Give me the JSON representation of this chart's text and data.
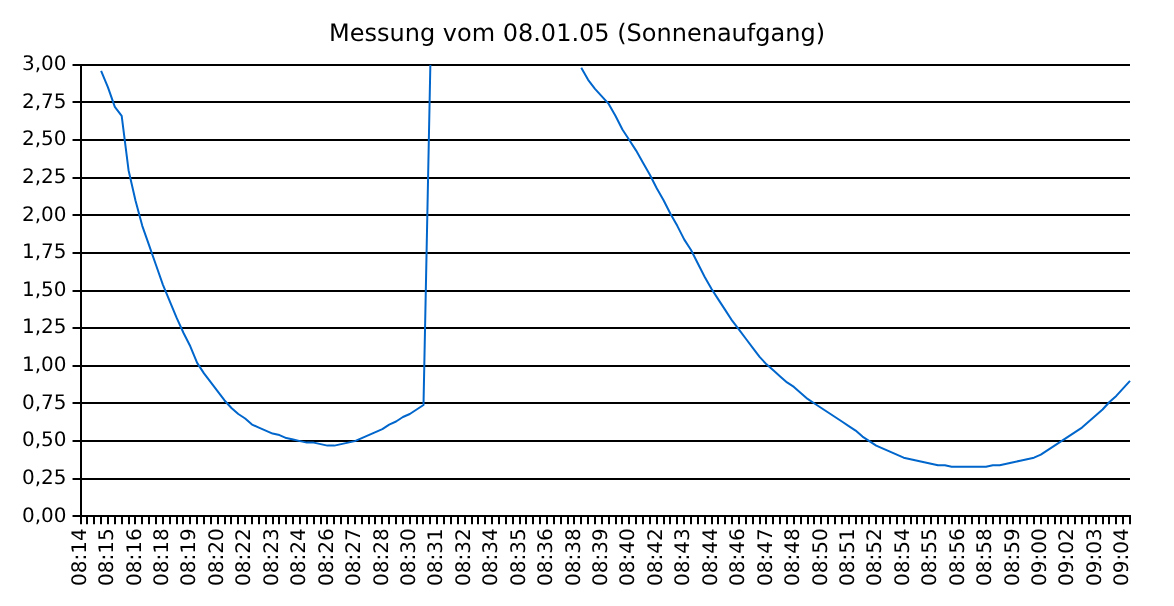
{
  "chart_data": {
    "type": "line",
    "title": "Messung vom 08.01.05 (Sonnenaufgang)",
    "categories": [
      "08:14",
      null,
      null,
      null,
      "08:15",
      null,
      null,
      null,
      "08:16",
      null,
      null,
      null,
      "08:18",
      null,
      null,
      null,
      "08:19",
      null,
      null,
      null,
      "08:20",
      null,
      null,
      null,
      "08:22",
      null,
      null,
      null,
      "08:23",
      null,
      null,
      null,
      "08:24",
      null,
      null,
      null,
      "08:26",
      null,
      null,
      null,
      "08:27",
      null,
      null,
      null,
      "08:28",
      null,
      null,
      null,
      "08:30",
      null,
      null,
      null,
      "08:31",
      null,
      null,
      null,
      "08:32",
      null,
      null,
      null,
      "08:34",
      null,
      null,
      null,
      "08:35",
      null,
      null,
      null,
      "08:36",
      null,
      null,
      null,
      "08:38",
      null,
      null,
      null,
      "08:39",
      null,
      null,
      null,
      "08:40",
      null,
      null,
      null,
      "08:42",
      null,
      null,
      null,
      "08:43",
      null,
      null,
      null,
      "08:44",
      null,
      null,
      null,
      "08:46",
      null,
      null,
      null,
      "08:47",
      null,
      null,
      null,
      "08:48",
      null,
      null,
      null,
      "08:50",
      null,
      null,
      null,
      "08:51",
      null,
      null,
      null,
      "08:52",
      null,
      null,
      null,
      "08:54",
      null,
      null,
      null,
      "08:55",
      null,
      null,
      null,
      "08:56",
      null,
      null,
      null,
      "08:58",
      null,
      null,
      null,
      "08:59",
      null,
      null,
      null,
      "09:00",
      null,
      null,
      null,
      "09:02",
      null,
      null,
      null,
      "09:03",
      null,
      null,
      null,
      "09:04",
      null
    ],
    "series": [
      {
        "color": "#0066cc",
        "values": [
          null,
          null,
          null,
          2.96,
          2.85,
          2.72,
          2.66,
          2.3,
          2.1,
          1.93,
          1.8,
          1.67,
          1.54,
          1.43,
          1.32,
          1.22,
          1.13,
          1.02,
          0.95,
          0.89,
          0.83,
          0.77,
          0.72,
          0.68,
          0.65,
          0.61,
          0.59,
          0.57,
          0.55,
          0.54,
          0.52,
          0.51,
          0.5,
          0.49,
          0.49,
          0.48,
          0.47,
          0.47,
          0.48,
          0.49,
          0.5,
          0.52,
          0.54,
          0.56,
          0.58,
          0.61,
          0.63,
          0.66,
          0.68,
          0.71,
          0.74,
          3.0,
          null,
          null,
          null,
          null,
          null,
          null,
          null,
          null,
          null,
          null,
          null,
          null,
          null,
          null,
          null,
          null,
          null,
          null,
          null,
          null,
          null,
          2.98,
          2.9,
          2.84,
          2.79,
          2.74,
          2.66,
          2.57,
          2.5,
          2.43,
          2.35,
          2.27,
          2.18,
          2.1,
          2.01,
          1.93,
          1.84,
          1.77,
          1.68,
          1.59,
          1.51,
          1.44,
          1.37,
          1.3,
          1.24,
          1.18,
          1.12,
          1.06,
          1.01,
          0.97,
          0.93,
          0.89,
          0.86,
          0.82,
          0.78,
          0.75,
          0.72,
          0.69,
          0.66,
          0.63,
          0.6,
          0.57,
          0.53,
          0.5,
          0.47,
          0.45,
          0.43,
          0.41,
          0.39,
          0.38,
          0.37,
          0.36,
          0.35,
          0.34,
          0.34,
          0.33,
          0.33,
          0.33,
          0.33,
          0.33,
          0.33,
          0.34,
          0.34,
          0.35,
          0.36,
          0.37,
          0.38,
          0.39,
          0.41,
          0.44,
          0.47,
          0.5,
          0.53,
          0.56,
          0.59,
          0.63,
          0.67,
          0.71,
          0.76,
          0.8,
          0.85,
          0.9
        ]
      }
    ],
    "ylim": [
      0,
      3
    ],
    "yticks": [
      {
        "value": 0,
        "label": "0,00"
      },
      {
        "value": 0.25,
        "label": "0,25"
      },
      {
        "value": 0.5,
        "label": "0,50"
      },
      {
        "value": 0.75,
        "label": "0,75"
      },
      {
        "value": 1,
        "label": "1,00"
      },
      {
        "value": 1.25,
        "label": "1,25"
      },
      {
        "value": 1.5,
        "label": "1,50"
      },
      {
        "value": 1.75,
        "label": "1,75"
      },
      {
        "value": 2,
        "label": "2,00"
      },
      {
        "value": 2.25,
        "label": "2,25"
      },
      {
        "value": 2.5,
        "label": "2,50"
      },
      {
        "value": 2.75,
        "label": "2,75"
      },
      {
        "value": 3,
        "label": "3,00"
      }
    ],
    "grid": "y"
  }
}
